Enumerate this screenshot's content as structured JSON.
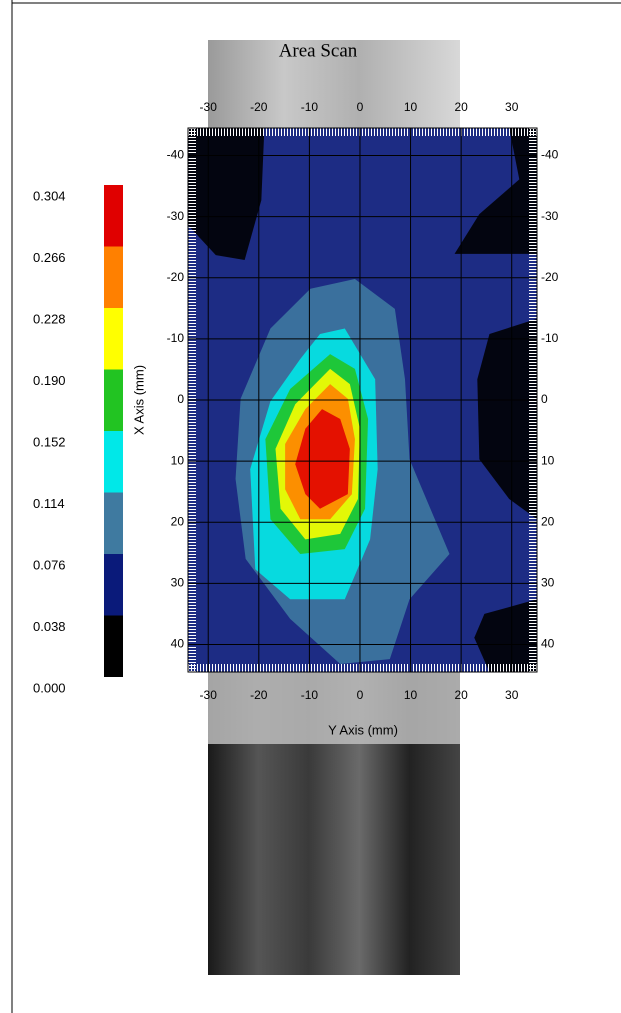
{
  "chart_data": {
    "type": "contour",
    "title": "Area Scan",
    "x_label": "Y Axis (mm)",
    "y_label": "X Axis (mm)",
    "xlim": [
      -34,
      35
    ],
    "ylim": [
      -44.5,
      44.5
    ],
    "y_inverted": true,
    "xticks": [
      -30,
      -20,
      -10,
      0,
      10,
      20,
      30
    ],
    "yticks": [
      -40,
      -30,
      -20,
      -10,
      0,
      10,
      20,
      30,
      40
    ],
    "grid": true,
    "levels": [
      0.0,
      0.038,
      0.076,
      0.114,
      0.152,
      0.19,
      0.228,
      0.266,
      0.304
    ],
    "level_labels": [
      "0.000",
      "0.038",
      "0.076",
      "0.114",
      "0.152",
      "0.190",
      "0.228",
      "0.266",
      "0.304"
    ],
    "colors": [
      "#000000",
      "#0a1a7a",
      "#3f7aa0",
      "#00e8e8",
      "#22c422",
      "#ffff00",
      "#ff8000",
      "#e00000"
    ],
    "base_level": 0.038,
    "contours": [
      {
        "level": 0.0,
        "points": [
          [
            -34,
            -44.5
          ],
          [
            -18.9,
            -44.5
          ],
          [
            -19.5,
            -32.7
          ],
          [
            -22.8,
            -22.9
          ],
          [
            -28.5,
            -23.7
          ],
          [
            -34,
            -28.6
          ]
        ]
      },
      {
        "level": 0.0,
        "points": [
          [
            29.5,
            -44.5
          ],
          [
            35,
            -44.5
          ],
          [
            35,
            -23.9
          ],
          [
            18.7,
            -23.9
          ],
          [
            23.6,
            -30.4
          ],
          [
            31.5,
            -36.1
          ]
        ]
      },
      {
        "level": 0.0,
        "points": [
          [
            35,
            -13.3
          ],
          [
            25.6,
            -10.8
          ],
          [
            23.2,
            -3.4
          ],
          [
            23.6,
            9.7
          ],
          [
            29.5,
            16.2
          ],
          [
            35,
            19.5
          ]
        ]
      },
      {
        "level": 0.0,
        "points": [
          [
            35,
            32.6
          ],
          [
            24.6,
            35
          ],
          [
            22.6,
            38.9
          ],
          [
            25.6,
            44.5
          ],
          [
            35,
            44.5
          ]
        ]
      },
      {
        "level": 0.076,
        "points": [
          [
            -9.8,
            -18.2
          ],
          [
            -1,
            -19.8
          ],
          [
            6.9,
            -14.9
          ],
          [
            8.9,
            -3.4
          ],
          [
            9.8,
            9.7
          ],
          [
            17.7,
            25.2
          ],
          [
            9.8,
            32.6
          ],
          [
            5.9,
            42.4
          ],
          [
            -3.9,
            43.2
          ],
          [
            -13.8,
            35.8
          ],
          [
            -22.6,
            26
          ],
          [
            -24.6,
            12.9
          ],
          [
            -23.6,
            -0.2
          ],
          [
            -17.7,
            -11.7
          ]
        ]
      },
      {
        "level": 0.114,
        "points": [
          [
            -7.9,
            -10.8
          ],
          [
            -3,
            -11.7
          ],
          [
            3,
            -3.4
          ],
          [
            3.5,
            11.3
          ],
          [
            2,
            22.8
          ],
          [
            -3,
            32.6
          ],
          [
            -13.8,
            32.6
          ],
          [
            -20.7,
            27.7
          ],
          [
            -21.7,
            11.3
          ],
          [
            -17.7,
            0.2
          ],
          [
            -11.8,
            -6.7
          ]
        ]
      },
      {
        "level": 0.152,
        "points": [
          [
            -5.9,
            -7.5
          ],
          [
            -1,
            -5.1
          ],
          [
            1.6,
            3.1
          ],
          [
            1,
            17.8
          ],
          [
            -3,
            24.4
          ],
          [
            -11.8,
            25.2
          ],
          [
            -17.7,
            19.5
          ],
          [
            -18.7,
            6.4
          ],
          [
            -13.8,
            -1.8
          ]
        ]
      },
      {
        "level": 0.19,
        "points": [
          [
            -5.9,
            -5.1
          ],
          [
            -2,
            -2.6
          ],
          [
            0,
            4.7
          ],
          [
            -0.4,
            16.2
          ],
          [
            -3.9,
            21.9
          ],
          [
            -10.8,
            22.8
          ],
          [
            -15.7,
            17.8
          ],
          [
            -16.7,
            8
          ],
          [
            -12.8,
            0.7
          ]
        ]
      },
      {
        "level": 0.228,
        "points": [
          [
            -5.9,
            -2.6
          ],
          [
            -2.4,
            -0.2
          ],
          [
            -1,
            6.4
          ],
          [
            -1.6,
            15.4
          ],
          [
            -5.9,
            19.5
          ],
          [
            -11.8,
            19.5
          ],
          [
            -14.8,
            14.6
          ],
          [
            -14.8,
            7.2
          ],
          [
            -10.8,
            1.5
          ]
        ]
      },
      {
        "level": 0.266,
        "points": [
          [
            -7.5,
            1.5
          ],
          [
            -3.9,
            3.1
          ],
          [
            -2,
            8
          ],
          [
            -2.4,
            15.4
          ],
          [
            -7.9,
            17.8
          ],
          [
            -10.8,
            15.4
          ],
          [
            -12.8,
            10.5
          ],
          [
            -10.8,
            4.7
          ]
        ]
      }
    ]
  }
}
